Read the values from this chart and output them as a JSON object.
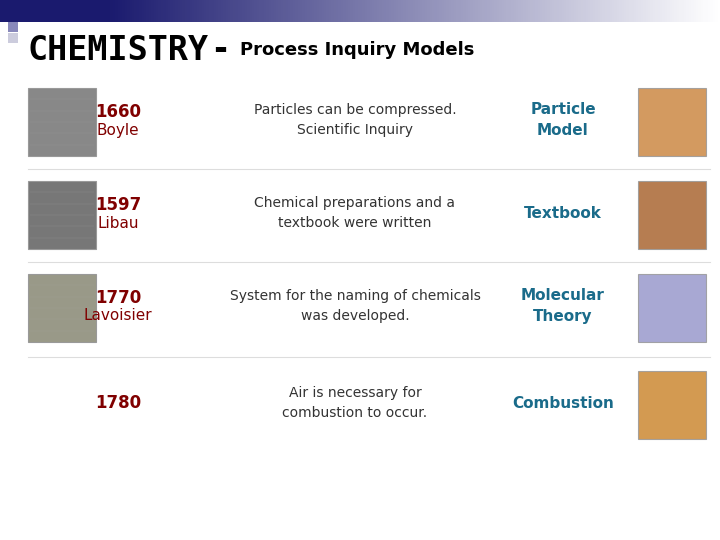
{
  "title_main": "CHEMISTRY",
  "title_dash": "-",
  "title_sub": "Process Inquiry Models",
  "bg_color": "#ffffff",
  "rows": [
    {
      "year": "1660",
      "name": "Boyle",
      "description": "Particles can be compressed.\nScientific Inquiry",
      "model_label": "Particle\nModel",
      "year_color": "#800000",
      "model_color": "#1a6b8a",
      "has_left_img": true,
      "left_img_color": "#888888",
      "right_img_color": "#cc8844"
    },
    {
      "year": "1597",
      "name": "Libau",
      "description": "Chemical preparations and a\ntextbook were written",
      "model_label": "Textbook",
      "year_color": "#800000",
      "model_color": "#1a6b8a",
      "has_left_img": true,
      "left_img_color": "#777777",
      "right_img_color": "#aa6633"
    },
    {
      "year": "1770",
      "name": "Lavoisier",
      "description": "System for the naming of chemicals\nwas developed.",
      "model_label": "Molecular\nTheory",
      "year_color": "#800000",
      "model_color": "#1a6b8a",
      "has_left_img": true,
      "left_img_color": "#999988",
      "right_img_color": "#9999cc"
    },
    {
      "year": "1780",
      "name": "",
      "description": "Air is necessary for\ncombustion to occur.",
      "model_label": "Combustion",
      "year_color": "#800000",
      "model_color": "#1a6b8a",
      "has_left_img": false,
      "left_img_color": "#888888",
      "right_img_color": "#cc8833"
    }
  ],
  "title_fontsize": 24,
  "subtitle_fontsize": 13,
  "year_fontsize": 12,
  "name_fontsize": 11,
  "desc_fontsize": 10,
  "model_fontsize": 11
}
